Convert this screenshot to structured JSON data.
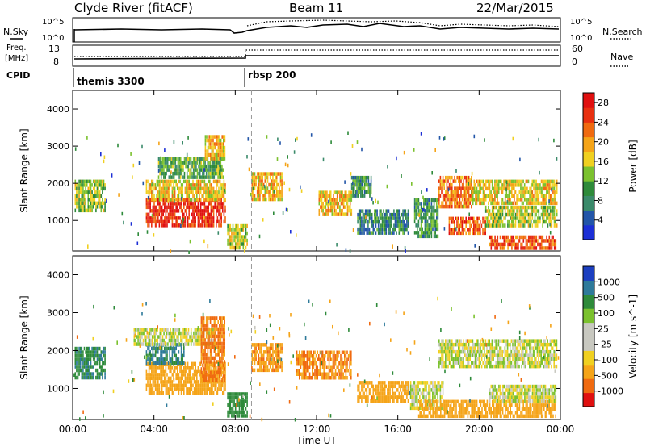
{
  "header": {
    "station": "Clyde River (fitACF)",
    "beam": "Beam 11",
    "date": "22/Mar/2015"
  },
  "strip_labels": {
    "left_top": "N.Sky",
    "left_top_tick_hi": "10^5",
    "left_top_tick_lo": "10^0",
    "left_mid_line1": "Freq.",
    "left_mid_line2": "[MHz]",
    "left_mid_tick_hi": "13",
    "left_mid_tick_lo": "8",
    "left_cpid": "CPID",
    "right_top": "N.Search",
    "right_top_tick_hi": "10^5",
    "right_top_tick_lo": "10^0",
    "right_mid": "Nave",
    "right_mid_tick_hi": "60",
    "right_mid_tick_lo": "0",
    "cpid_segments": [
      {
        "label": "themis 3300",
        "start_hour": 0
      },
      {
        "label": "rbsp 200",
        "start_hour": 8.8
      }
    ]
  },
  "colors": {
    "power_scale": [
      "#1c2fd6",
      "#2255a8",
      "#3a8a6a",
      "#2e8a3a",
      "#7bc12e",
      "#f0d020",
      "#f5a418",
      "#f06a10",
      "#e83010",
      "#e01010"
    ],
    "velocity_scale": [
      "#e01010",
      "#f06a10",
      "#f5a418",
      "#f0d020",
      "#c8c8c0",
      "#c8c8c0",
      "#7bc12e",
      "#2e8a3a",
      "#2e7a9a",
      "#1c3fc0"
    ]
  },
  "chart_data": [
    {
      "type": "heatmap",
      "title": "",
      "xlabel": "Time UT",
      "ylabel": "Slant Range [km]",
      "x_ticks": [
        "00:00",
        "04:00",
        "08:00",
        "12:00",
        "16:00",
        "20:00",
        "00:00"
      ],
      "y_ticks": [
        "1000",
        "2000",
        "3000",
        "4000"
      ],
      "ylim": [
        180,
        4500
      ],
      "xlim_hours": [
        0,
        24
      ],
      "colorbar_label": "Power [dB]",
      "colorbar_ticks": [
        "4",
        "8",
        "12",
        "16",
        "20",
        "24",
        "28"
      ],
      "colorbar_range": [
        0,
        30
      ],
      "regions": [
        {
          "t0": 0.1,
          "t1": 1.6,
          "r0": 1300,
          "r1": 2100,
          "value": 14
        },
        {
          "t0": 3.6,
          "t1": 7.5,
          "r0": 900,
          "r1": 1600,
          "value": 27
        },
        {
          "t0": 3.6,
          "t1": 7.5,
          "r0": 1600,
          "r1": 2100,
          "value": 17
        },
        {
          "t0": 4.2,
          "t1": 7.4,
          "r0": 2200,
          "r1": 2700,
          "value": 11
        },
        {
          "t0": 6.5,
          "t1": 7.5,
          "r0": 2700,
          "r1": 3300,
          "value": 18
        },
        {
          "t0": 7.6,
          "t1": 8.6,
          "r0": 250,
          "r1": 900,
          "value": 16
        },
        {
          "t0": 8.8,
          "t1": 10.3,
          "r0": 1600,
          "r1": 2300,
          "value": 19
        },
        {
          "t0": 12.1,
          "t1": 13.7,
          "r0": 1200,
          "r1": 1800,
          "value": 18
        },
        {
          "t0": 13.7,
          "t1": 14.7,
          "r0": 1700,
          "r1": 2200,
          "value": 10
        },
        {
          "t0": 14.0,
          "t1": 16.5,
          "r0": 700,
          "r1": 1300,
          "value": 8
        },
        {
          "t0": 16.8,
          "t1": 18.0,
          "r0": 600,
          "r1": 1600,
          "value": 10
        },
        {
          "t0": 18.0,
          "t1": 19.6,
          "r0": 1400,
          "r1": 2200,
          "value": 22
        },
        {
          "t0": 19.6,
          "t1": 23.8,
          "r0": 1500,
          "r1": 2100,
          "value": 17
        },
        {
          "t0": 18.5,
          "t1": 20.3,
          "r0": 700,
          "r1": 1100,
          "value": 24
        },
        {
          "t0": 20.3,
          "t1": 23.8,
          "r0": 900,
          "r1": 1400,
          "value": 15
        },
        {
          "t0": 20.5,
          "t1": 23.8,
          "r0": 250,
          "r1": 600,
          "value": 24
        }
      ]
    },
    {
      "type": "heatmap",
      "title": "",
      "xlabel": "Time UT",
      "ylabel": "Slant Range [km]",
      "x_ticks": [
        "00:00",
        "04:00",
        "08:00",
        "12:00",
        "16:00",
        "20:00",
        "00:00"
      ],
      "y_ticks": [
        "1000",
        "2000",
        "3000",
        "4000"
      ],
      "ylim": [
        180,
        4500
      ],
      "xlim_hours": [
        0,
        24
      ],
      "colorbar_label": "Velocity [m s^-1]",
      "colorbar_ticks": [
        "1000",
        "500",
        "100",
        "25",
        "-25",
        "-100",
        "-500",
        "-1000"
      ],
      "regions": [
        {
          "t0": 0.1,
          "t1": 1.6,
          "r0": 1300,
          "r1": 2100,
          "value": 400
        },
        {
          "t0": 3.6,
          "t1": 7.5,
          "r0": 900,
          "r1": 1700,
          "value": -300
        },
        {
          "t0": 3.6,
          "t1": 5.5,
          "r0": 1700,
          "r1": 2200,
          "value": 600
        },
        {
          "t0": 3.0,
          "t1": 7.0,
          "r0": 2200,
          "r1": 2600,
          "value": 0
        },
        {
          "t0": 6.3,
          "t1": 7.5,
          "r0": 1200,
          "r1": 2900,
          "value": -600
        },
        {
          "t0": 7.6,
          "t1": 8.6,
          "r0": 300,
          "r1": 900,
          "value": 200
        },
        {
          "t0": 8.8,
          "t1": 10.3,
          "r0": 1500,
          "r1": 2200,
          "value": -400
        },
        {
          "t0": 11.0,
          "t1": 13.7,
          "r0": 1300,
          "r1": 2000,
          "value": -500
        },
        {
          "t0": 14.0,
          "t1": 16.5,
          "r0": 700,
          "r1": 1200,
          "value": -200
        },
        {
          "t0": 16.6,
          "t1": 18.2,
          "r0": 500,
          "r1": 1200,
          "value": 0
        },
        {
          "t0": 18.0,
          "t1": 23.8,
          "r0": 1600,
          "r1": 2300,
          "value": 0
        },
        {
          "t0": 17.0,
          "t1": 23.8,
          "r0": 300,
          "r1": 700,
          "value": -300
        },
        {
          "t0": 20.5,
          "t1": 23.8,
          "r0": 700,
          "r1": 1100,
          "value": 0
        }
      ]
    }
  ]
}
